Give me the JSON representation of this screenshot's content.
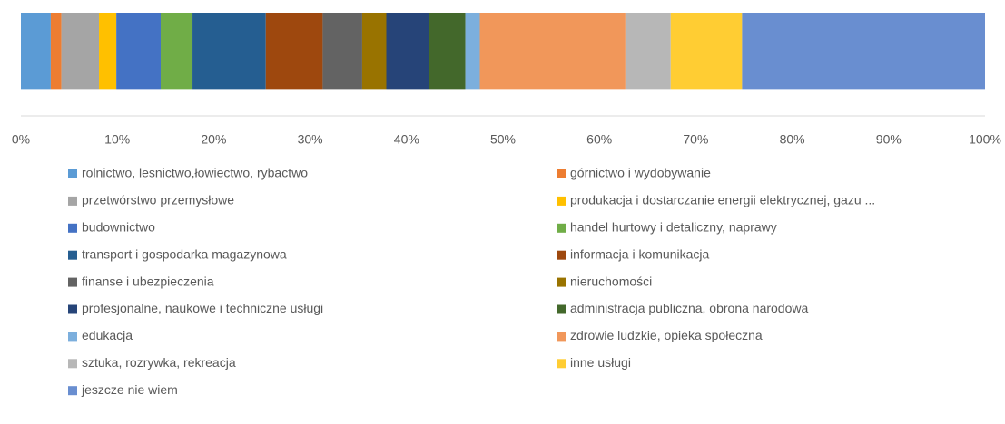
{
  "chart_data": {
    "type": "bar",
    "orientation": "horizontal",
    "stacked": true,
    "categories": [
      null
    ],
    "series": [
      {
        "name": "rolnictwo, lesnictwo,łowiectwo, rybactwo",
        "color": "#5b9bd5",
        "values": [
          3.1
        ]
      },
      {
        "name": "górnictwo i wydobywanie",
        "color": "#ed7d31",
        "values": [
          1.1
        ]
      },
      {
        "name": "przetwórstwo przemysłowe",
        "color": "#a5a5a5",
        "values": [
          3.9
        ]
      },
      {
        "name": "produkacja i dostarczanie energii elektrycznej, gazu ...",
        "color": "#ffc000",
        "values": [
          1.8
        ]
      },
      {
        "name": "budownictwo",
        "color": "#4472c4",
        "values": [
          4.6
        ]
      },
      {
        "name": "handel hurtowy i detaliczny, naprawy",
        "color": "#70ad47",
        "values": [
          3.3
        ]
      },
      {
        "name": "transport i gospodarka magazynowa",
        "color": "#255e91",
        "values": [
          7.6
        ]
      },
      {
        "name": "informacja i komunikacja",
        "color": "#9e480e",
        "values": [
          5.9
        ]
      },
      {
        "name": "finanse i ubezpieczenia",
        "color": "#636363",
        "values": [
          4.1
        ]
      },
      {
        "name": "nieruchomości",
        "color": "#997300",
        "values": [
          2.5
        ]
      },
      {
        "name": "profesjonalne, naukowe i techniczne usługi",
        "color": "#264478",
        "values": [
          4.4
        ]
      },
      {
        "name": "administracja publiczna, obrona narodowa",
        "color": "#43682b",
        "values": [
          3.8
        ]
      },
      {
        "name": "edukacja",
        "color": "#7cafdd",
        "values": [
          1.5
        ]
      },
      {
        "name": "zdrowie ludzkie, opieka społeczna",
        "color": "#f1975a",
        "values": [
          15.1
        ]
      },
      {
        "name": "sztuka, rozrywka, rekreacja",
        "color": "#b7b7b7",
        "values": [
          4.7
        ]
      },
      {
        "name": "inne usługi",
        "color": "#ffcd33",
        "values": [
          7.4
        ]
      },
      {
        "name": "jeszcze nie wiem",
        "color": "#698ed0",
        "values": [
          25.2
        ]
      }
    ],
    "xlim": [
      0,
      100
    ],
    "xticks": [
      {
        "value": 0,
        "label": "0%"
      },
      {
        "value": 10,
        "label": "10%"
      },
      {
        "value": 20,
        "label": "20%"
      },
      {
        "value": 30,
        "label": "30%"
      },
      {
        "value": 40,
        "label": "40%"
      },
      {
        "value": 50,
        "label": "50%"
      },
      {
        "value": 60,
        "label": "60%"
      },
      {
        "value": 70,
        "label": "70%"
      },
      {
        "value": 80,
        "label": "80%"
      },
      {
        "value": 90,
        "label": "90%"
      },
      {
        "value": 100,
        "label": "100%"
      }
    ],
    "grid": false,
    "legend": "bottom"
  }
}
